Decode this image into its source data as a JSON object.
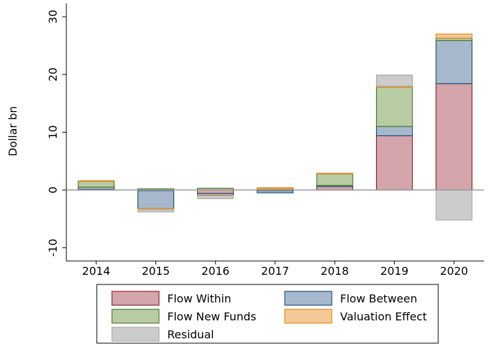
{
  "chart_data": {
    "type": "stacked-bar",
    "y_label": "Dollar bn",
    "categories": [
      "2014",
      "2015",
      "2016",
      "2017",
      "2018",
      "2019",
      "2020"
    ],
    "series": [
      {
        "name": "Flow Within",
        "color": "#d4a5ab",
        "stroke": "#8b2331",
        "values": [
          0.1,
          -0.1,
          -0.6,
          -0.1,
          0.6,
          9.4,
          18.4
        ]
      },
      {
        "name": "Flow Between",
        "color": "#a6b8cc",
        "stroke": "#1f4e79",
        "values": [
          0.4,
          -3.1,
          -0.3,
          -0.4,
          0.2,
          1.6,
          7.5
        ]
      },
      {
        "name": "Flow New Funds",
        "color": "#b8cca3",
        "stroke": "#4a7a2a",
        "values": [
          1.0,
          0.2,
          0.3,
          0.2,
          2.0,
          6.8,
          0.4
        ]
      },
      {
        "name": "Valuation Effect",
        "color": "#f5c995",
        "stroke": "#e08a1a",
        "values": [
          0.1,
          -0.2,
          -0.1,
          0.2,
          0.1,
          0.2,
          0.7
        ]
      },
      {
        "name": "Residual",
        "color": "#cccccc",
        "stroke": "#aaaaaa",
        "values": [
          0.0,
          -0.4,
          -0.5,
          0.0,
          0.0,
          1.9,
          -5.2
        ]
      }
    ],
    "ylim": [
      -12.3,
      32.3
    ],
    "yticks": [
      -10,
      0,
      10,
      20,
      30
    ]
  }
}
